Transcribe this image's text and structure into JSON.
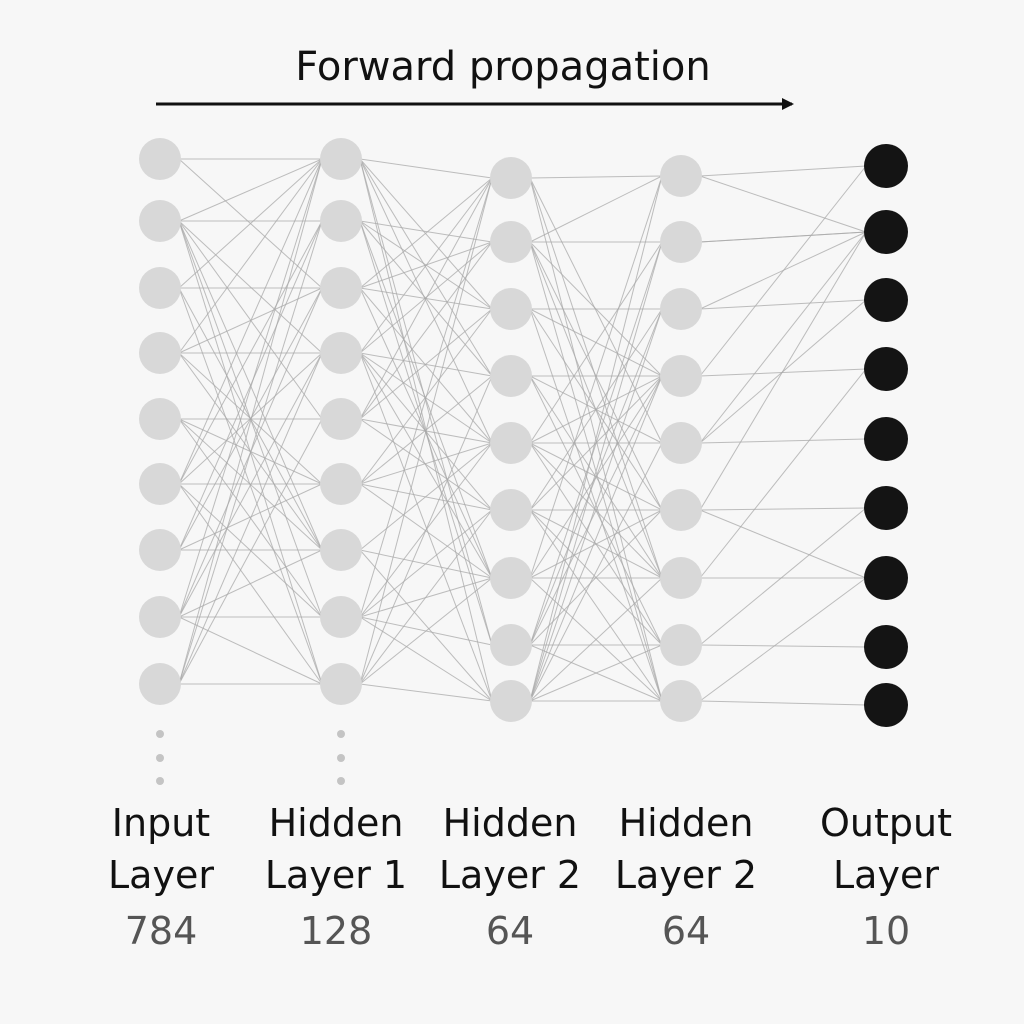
{
  "title": "Forward propagation",
  "colors": {
    "hidden_node": "#d8d8d8",
    "output_node": "#141414",
    "edge": "#a8a8a8",
    "ellipsis": "#c4c4c4",
    "arrow": "#111111"
  },
  "layers": [
    {
      "name_line1": "Input",
      "name_line2": "Layer",
      "count": "784",
      "node_style": "light",
      "nodes_drawn": 9,
      "truncated": true
    },
    {
      "name_line1": "Hidden",
      "name_line2": "Layer 1",
      "count": "128",
      "node_style": "light",
      "nodes_drawn": 9,
      "truncated": true
    },
    {
      "name_line1": "Hidden",
      "name_line2": "Layer 2",
      "count": "64",
      "node_style": "light",
      "nodes_drawn": 9,
      "truncated": false
    },
    {
      "name_line1": "Hidden",
      "name_line2": "Layer 2",
      "count": "64",
      "node_style": "light",
      "nodes_drawn": 9,
      "truncated": false
    },
    {
      "name_line1": "Output",
      "name_line2": "Layer",
      "count": "10",
      "node_style": "dark",
      "nodes_drawn": 9,
      "truncated": false
    }
  ]
}
